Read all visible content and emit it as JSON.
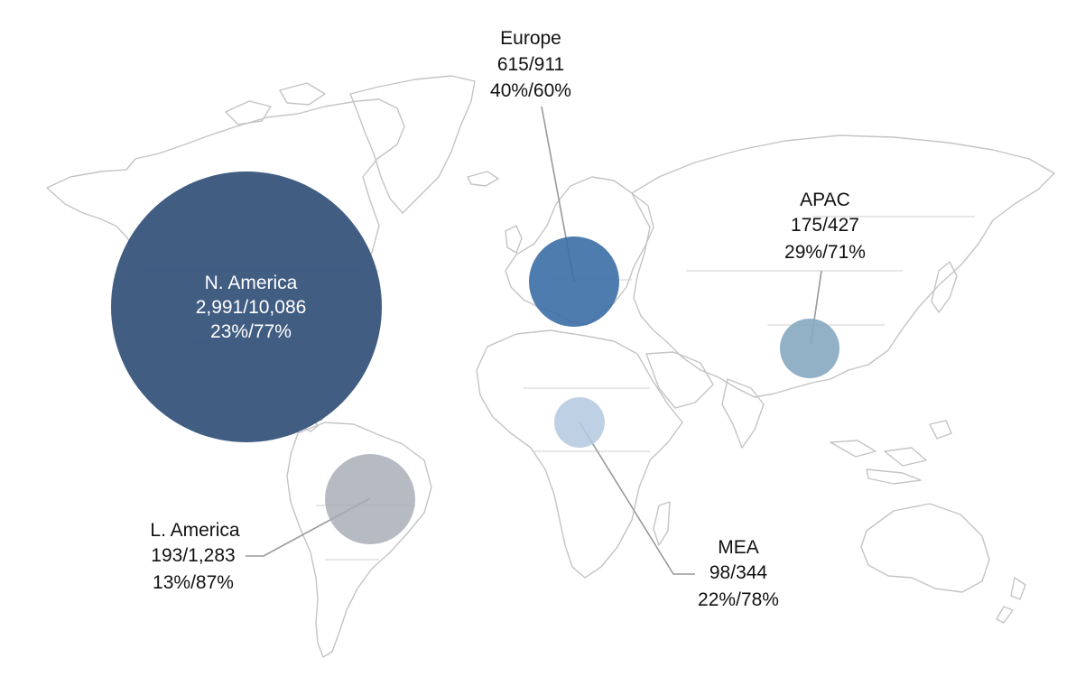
{
  "regions": [
    {
      "id": "namerica",
      "name": "N. America",
      "values": "2,991/10,086",
      "percents": "23%/77%",
      "color": "#3d5a80",
      "label_style": "inside"
    },
    {
      "id": "europe",
      "name": "Europe",
      "values": "615/911",
      "percents": "40%/60%",
      "color": "#3b6ea5"
    },
    {
      "id": "apac",
      "name": "APAC",
      "values": "175/427",
      "percents": "29%/71%",
      "color": "#86a7c0"
    },
    {
      "id": "mea",
      "name": "MEA",
      "values": "98/344",
      "percents": "22%/78%",
      "color": "#b3c9df"
    },
    {
      "id": "lamerica",
      "name": "L. America",
      "values": "193/1,283",
      "percents": "13%/87%",
      "color": "#a6acb6"
    }
  ],
  "colors": {
    "land_outline": "#c4c4c4",
    "leader_line": "#999999",
    "background": "#ffffff"
  }
}
